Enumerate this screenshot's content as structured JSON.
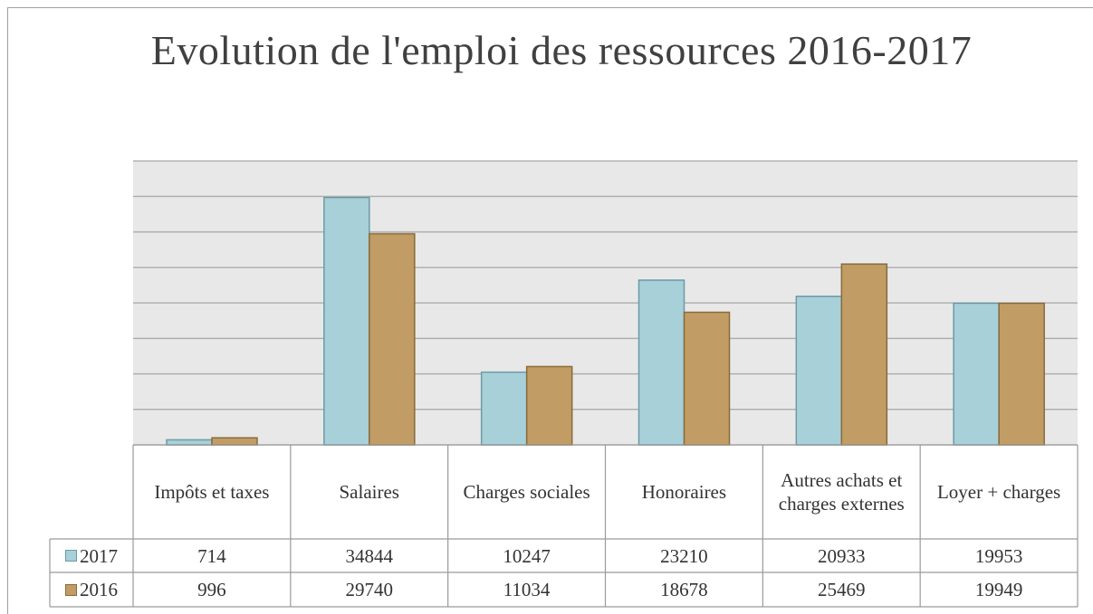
{
  "chart_data": {
    "type": "bar",
    "title": "Evolution de l'emploi des ressources 2016-2017",
    "categories": [
      "Impôts et taxes",
      "Salaires",
      "Charges sociales",
      "Honoraires",
      "Autres achats et charges externes",
      "Loyer + charges"
    ],
    "series": [
      {
        "name": "2017",
        "color": "#a8d0d8",
        "values": [
          714,
          34844,
          10247,
          23210,
          20933,
          19953
        ]
      },
      {
        "name": "2016",
        "color": "#c19d65",
        "values": [
          996,
          29740,
          11034,
          18678,
          25469,
          19949
        ]
      }
    ],
    "ylim": [
      0,
      40000
    ],
    "yticks": [
      0,
      5000,
      10000,
      15000,
      20000,
      25000,
      30000,
      35000,
      40000
    ],
    "grid": true
  }
}
